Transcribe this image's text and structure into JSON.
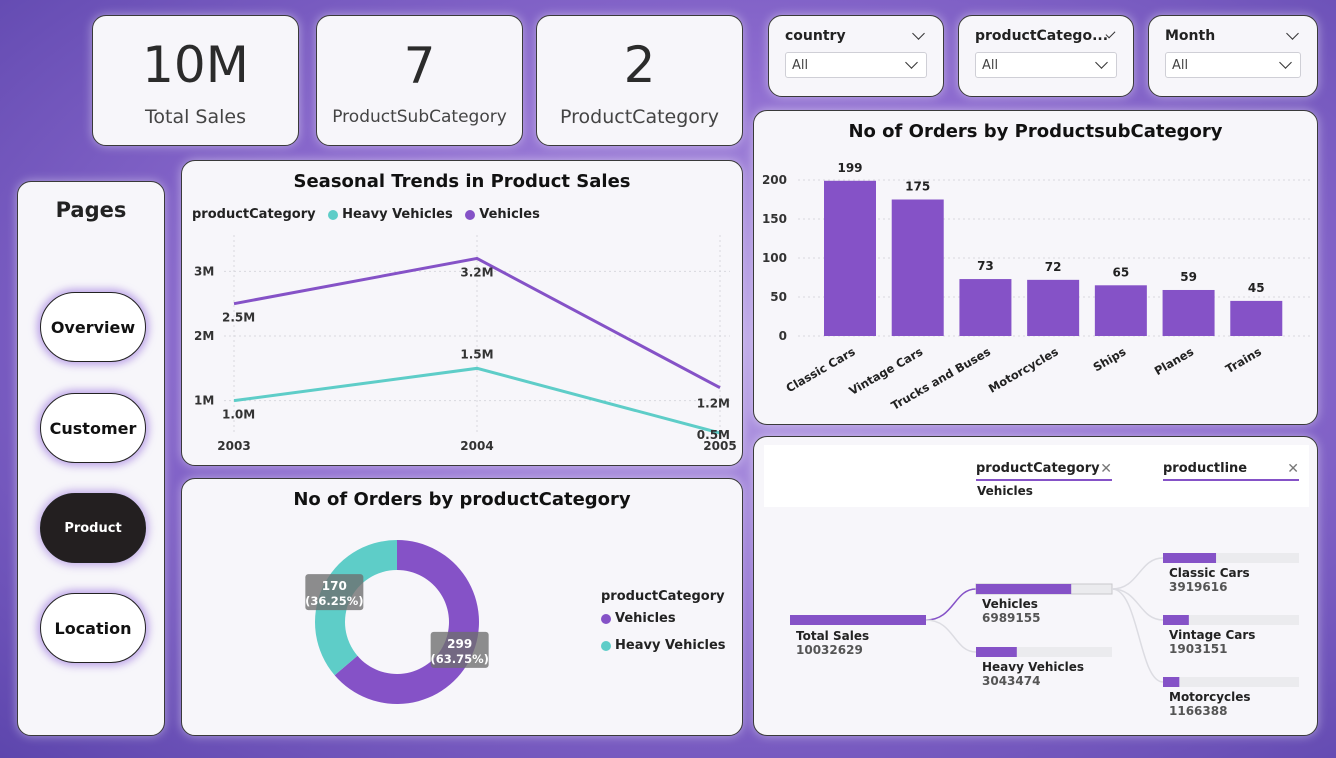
{
  "kpis": [
    {
      "value": "10M",
      "label": "Total Sales"
    },
    {
      "value": "7",
      "label": "ProductSubCategory"
    },
    {
      "value": "2",
      "label": "ProductCategory"
    }
  ],
  "slicers": [
    {
      "label": "country",
      "value": "All"
    },
    {
      "label": "productCatego...",
      "value": "All"
    },
    {
      "label": "Month",
      "value": "All"
    }
  ],
  "nav": {
    "title": "Pages",
    "items": [
      "Overview",
      "Customer",
      "Product",
      "Location"
    ],
    "active": "Product"
  },
  "colors": {
    "vehicles": "#8552c7",
    "heavy_vehicles": "#5ecdc8",
    "bar": "#8552c7"
  },
  "line_chart": {
    "title": "Seasonal Trends in Product Sales",
    "legend_title": "productCategory",
    "chart_data": {
      "type": "line",
      "x": [
        "2003",
        "2004",
        "2005"
      ],
      "series": [
        {
          "name": "Heavy Vehicles",
          "values": [
            1.0,
            1.5,
            0.5
          ],
          "labels": [
            "1.0M",
            "1.5M",
            "0.5M"
          ]
        },
        {
          "name": "Vehicles",
          "values": [
            2.5,
            3.2,
            1.2
          ],
          "labels": [
            "2.5M",
            "3.2M",
            "1.2M"
          ]
        }
      ],
      "yticks": [
        "1M",
        "2M",
        "3M"
      ],
      "ylim": [
        0.5,
        3.5
      ]
    }
  },
  "bar_chart": {
    "title": "No of Orders by ProductsubCategory",
    "chart_data": {
      "type": "bar",
      "categories": [
        "Classic Cars",
        "Vintage Cars",
        "Trucks and Buses",
        "Motorcycles",
        "Ships",
        "Planes",
        "Trains"
      ],
      "values": [
        199,
        175,
        73,
        72,
        65,
        59,
        45
      ],
      "yticks": [
        "0",
        "50",
        "100",
        "150",
        "200"
      ],
      "ylim": [
        0,
        200
      ]
    }
  },
  "donut_chart": {
    "title": "No of Orders by productCategory",
    "legend_title": "productCategory",
    "chart_data": {
      "type": "pie",
      "slices": [
        {
          "name": "Vehicles",
          "value": 299,
          "label": "299",
          "percent": "(63.75%)"
        },
        {
          "name": "Heavy Vehicles",
          "value": 170,
          "label": "170",
          "percent": "(36.25%)"
        }
      ]
    }
  },
  "decomp": {
    "filters": [
      {
        "field": "productCategory",
        "value": "Vehicles"
      },
      {
        "field": "productline",
        "value": ""
      }
    ],
    "root": {
      "label": "Total Sales",
      "value": "10032629"
    },
    "level1": [
      {
        "label": "Vehicles",
        "value": "6989155",
        "fraction": 0.7
      },
      {
        "label": "Heavy Vehicles",
        "value": "3043474",
        "fraction": 0.3
      }
    ],
    "level2": [
      {
        "label": "Classic Cars",
        "value": "3919616",
        "fraction": 0.39
      },
      {
        "label": "Vintage Cars",
        "value": "1903151",
        "fraction": 0.19
      },
      {
        "label": "Motorcycles",
        "value": "1166388",
        "fraction": 0.12
      }
    ]
  }
}
